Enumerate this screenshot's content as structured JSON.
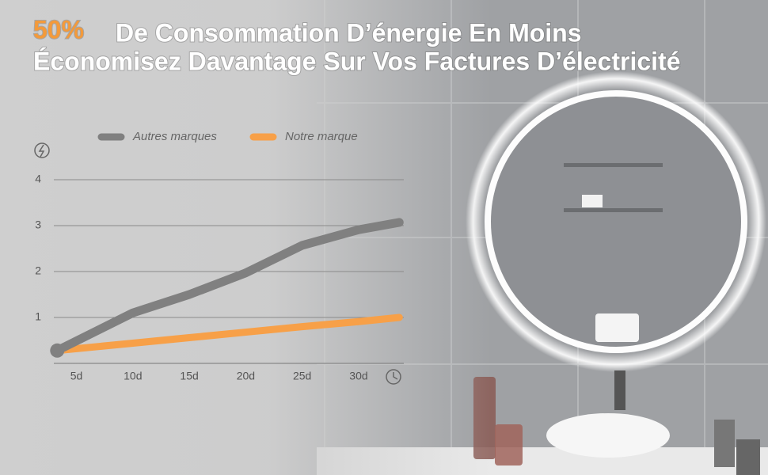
{
  "chart_data": {
    "type": "line",
    "title_highlight": "50%",
    "title": "De Consommation D’énergie En Moins",
    "subtitle": "Économisez Davantage Sur Vos Factures D’électricité",
    "x": [
      3.3,
      10,
      15,
      20,
      25,
      30,
      33.6
    ],
    "series": [
      {
        "name": "Autres marques",
        "color": "#808080",
        "values": [
          0.28,
          1.1,
          1.5,
          1.97,
          2.57,
          2.91,
          3.07
        ]
      },
      {
        "name": "Notre marque",
        "color": "#f7a048",
        "values": [
          0.28,
          0.44,
          0.56,
          0.68,
          0.8,
          0.91,
          1.0
        ]
      }
    ],
    "xlim": [
      3,
      34
    ],
    "xticks": [
      {
        "value": 5,
        "label": "5d"
      },
      {
        "value": 10,
        "label": "10d"
      },
      {
        "value": 15,
        "label": "15d"
      },
      {
        "value": 20,
        "label": "20d"
      },
      {
        "value": 25,
        "label": "25d"
      },
      {
        "value": 30,
        "label": "30d"
      }
    ],
    "ylim": [
      0,
      4
    ],
    "yticks": [
      1,
      2,
      3,
      4
    ],
    "grid": true
  }
}
